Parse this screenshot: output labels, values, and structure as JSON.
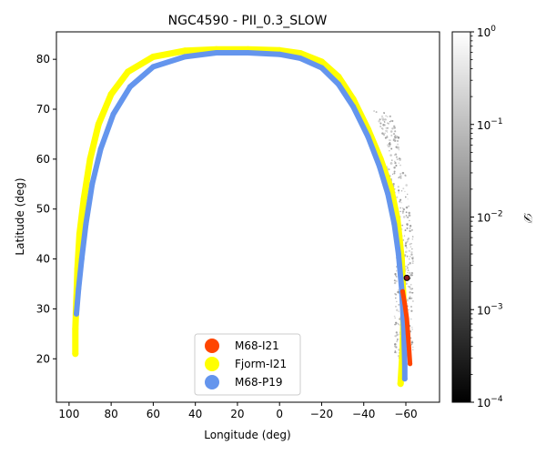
{
  "chart_data": {
    "type": "scatter",
    "title": "NGC4590 - PII_0.3_SLOW",
    "xlabel": "Longitude (deg)",
    "ylabel": "Latitude (deg)",
    "xlim": [
      106,
      -76
    ],
    "ylim": [
      11.3,
      85.5
    ],
    "xticks": [
      100,
      80,
      60,
      40,
      20,
      0,
      -20,
      -40,
      -60
    ],
    "xtick_labels": [
      "100",
      "80",
      "60",
      "40",
      "20",
      "0",
      "−20",
      "−40",
      "−60"
    ],
    "yticks": [
      20,
      30,
      40,
      50,
      60,
      70,
      80
    ],
    "ytick_labels": [
      "20",
      "30",
      "40",
      "50",
      "60",
      "70",
      "80"
    ],
    "legend_position": "lower-center",
    "series": [
      {
        "name": "Fjorm-I21",
        "color": "#ffff00",
        "points": [
          [
            97,
            21
          ],
          [
            97,
            26
          ],
          [
            96.5,
            32
          ],
          [
            96,
            38
          ],
          [
            95,
            45
          ],
          [
            93,
            52
          ],
          [
            90,
            60
          ],
          [
            86,
            67
          ],
          [
            80,
            73
          ],
          [
            72,
            77.5
          ],
          [
            60,
            80.5
          ],
          [
            45,
            81.7
          ],
          [
            30,
            82
          ],
          [
            15,
            82
          ],
          [
            0,
            81.8
          ],
          [
            -10,
            81.2
          ],
          [
            -20,
            79.5
          ],
          [
            -28,
            76.5
          ],
          [
            -35,
            72
          ],
          [
            -42,
            66
          ],
          [
            -48,
            60
          ],
          [
            -53,
            54
          ],
          [
            -56,
            48
          ],
          [
            -58,
            40
          ],
          [
            -59,
            30
          ],
          [
            -58.5,
            22
          ],
          [
            -57.5,
            15
          ]
        ]
      },
      {
        "name": "M68-P19",
        "color": "#6495ed",
        "points": [
          [
            96.5,
            29
          ],
          [
            95.5,
            34
          ],
          [
            94,
            40
          ],
          [
            92,
            47
          ],
          [
            89,
            55
          ],
          [
            85,
            62
          ],
          [
            79,
            69
          ],
          [
            71,
            74.5
          ],
          [
            60,
            78.5
          ],
          [
            45,
            80.5
          ],
          [
            30,
            81.3
          ],
          [
            15,
            81.3
          ],
          [
            0,
            81
          ],
          [
            -10,
            80.2
          ],
          [
            -20,
            78.3
          ],
          [
            -28,
            75
          ],
          [
            -35,
            70.5
          ],
          [
            -42,
            64.5
          ],
          [
            -47.5,
            58.5
          ],
          [
            -51.5,
            53
          ],
          [
            -54.5,
            47
          ],
          [
            -56.5,
            41
          ],
          [
            -58,
            34
          ],
          [
            -59,
            26
          ],
          [
            -59.5,
            19
          ],
          [
            -59.5,
            16
          ]
        ]
      },
      {
        "name": "M68-I21",
        "color": "#ff4500",
        "points": [
          [
            -58.5,
            33.5
          ],
          [
            -59.5,
            31
          ],
          [
            -60.5,
            28
          ],
          [
            -61,
            25
          ],
          [
            -61.5,
            22
          ],
          [
            -62,
            19
          ]
        ]
      }
    ],
    "progenitor": {
      "lon": -60.5,
      "lat": 36.2
    },
    "colorbar": {
      "label": "𝒟",
      "scale": "log",
      "range": [
        0.0001,
        1
      ],
      "ticks": [
        {
          "value": 1,
          "base": "10",
          "exp": "0"
        },
        {
          "value": 0.1,
          "base": "10",
          "exp": "−1"
        },
        {
          "value": 0.01,
          "base": "10",
          "exp": "−2"
        },
        {
          "value": 0.001,
          "base": "10",
          "exp": "−3"
        },
        {
          "value": 0.0001,
          "base": "10",
          "exp": "−4"
        }
      ]
    }
  }
}
